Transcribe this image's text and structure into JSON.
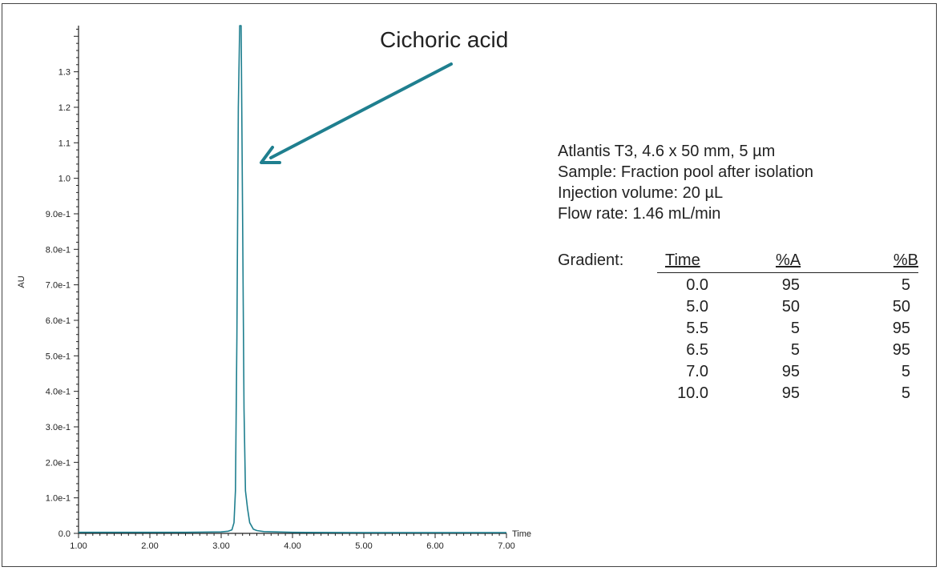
{
  "chart_data": {
    "type": "line",
    "xlabel": "Time",
    "ylabel": "AU",
    "xlim": [
      1.0,
      7.0
    ],
    "ylim": [
      0.0,
      1.43
    ],
    "x_ticks": [
      "1.00",
      "2.00",
      "3.00",
      "4.00",
      "5.00",
      "6.00",
      "7.00"
    ],
    "y_ticks": [
      "0.0",
      "1.0e-1",
      "2.0e-1",
      "3.0e-1",
      "4.0e-1",
      "5.0e-1",
      "6.0e-1",
      "7.0e-1",
      "8.0e-1",
      "9.0e-1",
      "1.0",
      "1.1",
      "1.2",
      "1.3"
    ],
    "series": [
      {
        "color": "#1f7f8f",
        "x": [
          1.0,
          2.5,
          3.0,
          3.1,
          3.15,
          3.18,
          3.2,
          3.22,
          3.24,
          3.26,
          3.28,
          3.3,
          3.32,
          3.34,
          3.37,
          3.4,
          3.45,
          3.5,
          3.6,
          4.0,
          5.0,
          7.0
        ],
        "y": [
          0.003,
          0.003,
          0.004,
          0.006,
          0.01,
          0.03,
          0.12,
          0.55,
          1.2,
          1.43,
          1.43,
          0.9,
          0.35,
          0.12,
          0.07,
          0.03,
          0.012,
          0.008,
          0.005,
          0.003,
          0.002,
          0.002
        ]
      }
    ],
    "annotations": [
      {
        "text": "Cichoric acid",
        "x": 3.3,
        "y": 1.05
      }
    ],
    "grid": false,
    "legend": "none"
  },
  "info": {
    "lines": [
      "Atlantis T3, 4.6 x 50 mm, 5 µm",
      "Sample: Fraction pool after isolation",
      "Injection volume: 20 µL",
      "Flow rate: 1.46 mL/min"
    ]
  },
  "gradient": {
    "label": "Gradient:",
    "headers": [
      "Time",
      "%A",
      "%B"
    ],
    "rows": [
      [
        "0.0",
        "95",
        "5"
      ],
      [
        "5.0",
        "50",
        "50"
      ],
      [
        "5.5",
        "5",
        "95"
      ],
      [
        "6.5",
        "5",
        "95"
      ],
      [
        "7.0",
        "95",
        "5"
      ],
      [
        "10.0",
        "95",
        "5"
      ]
    ]
  },
  "colors": {
    "trace": "#1f7f8f",
    "arrow": "#1f7f8f",
    "axis": "#222222"
  }
}
